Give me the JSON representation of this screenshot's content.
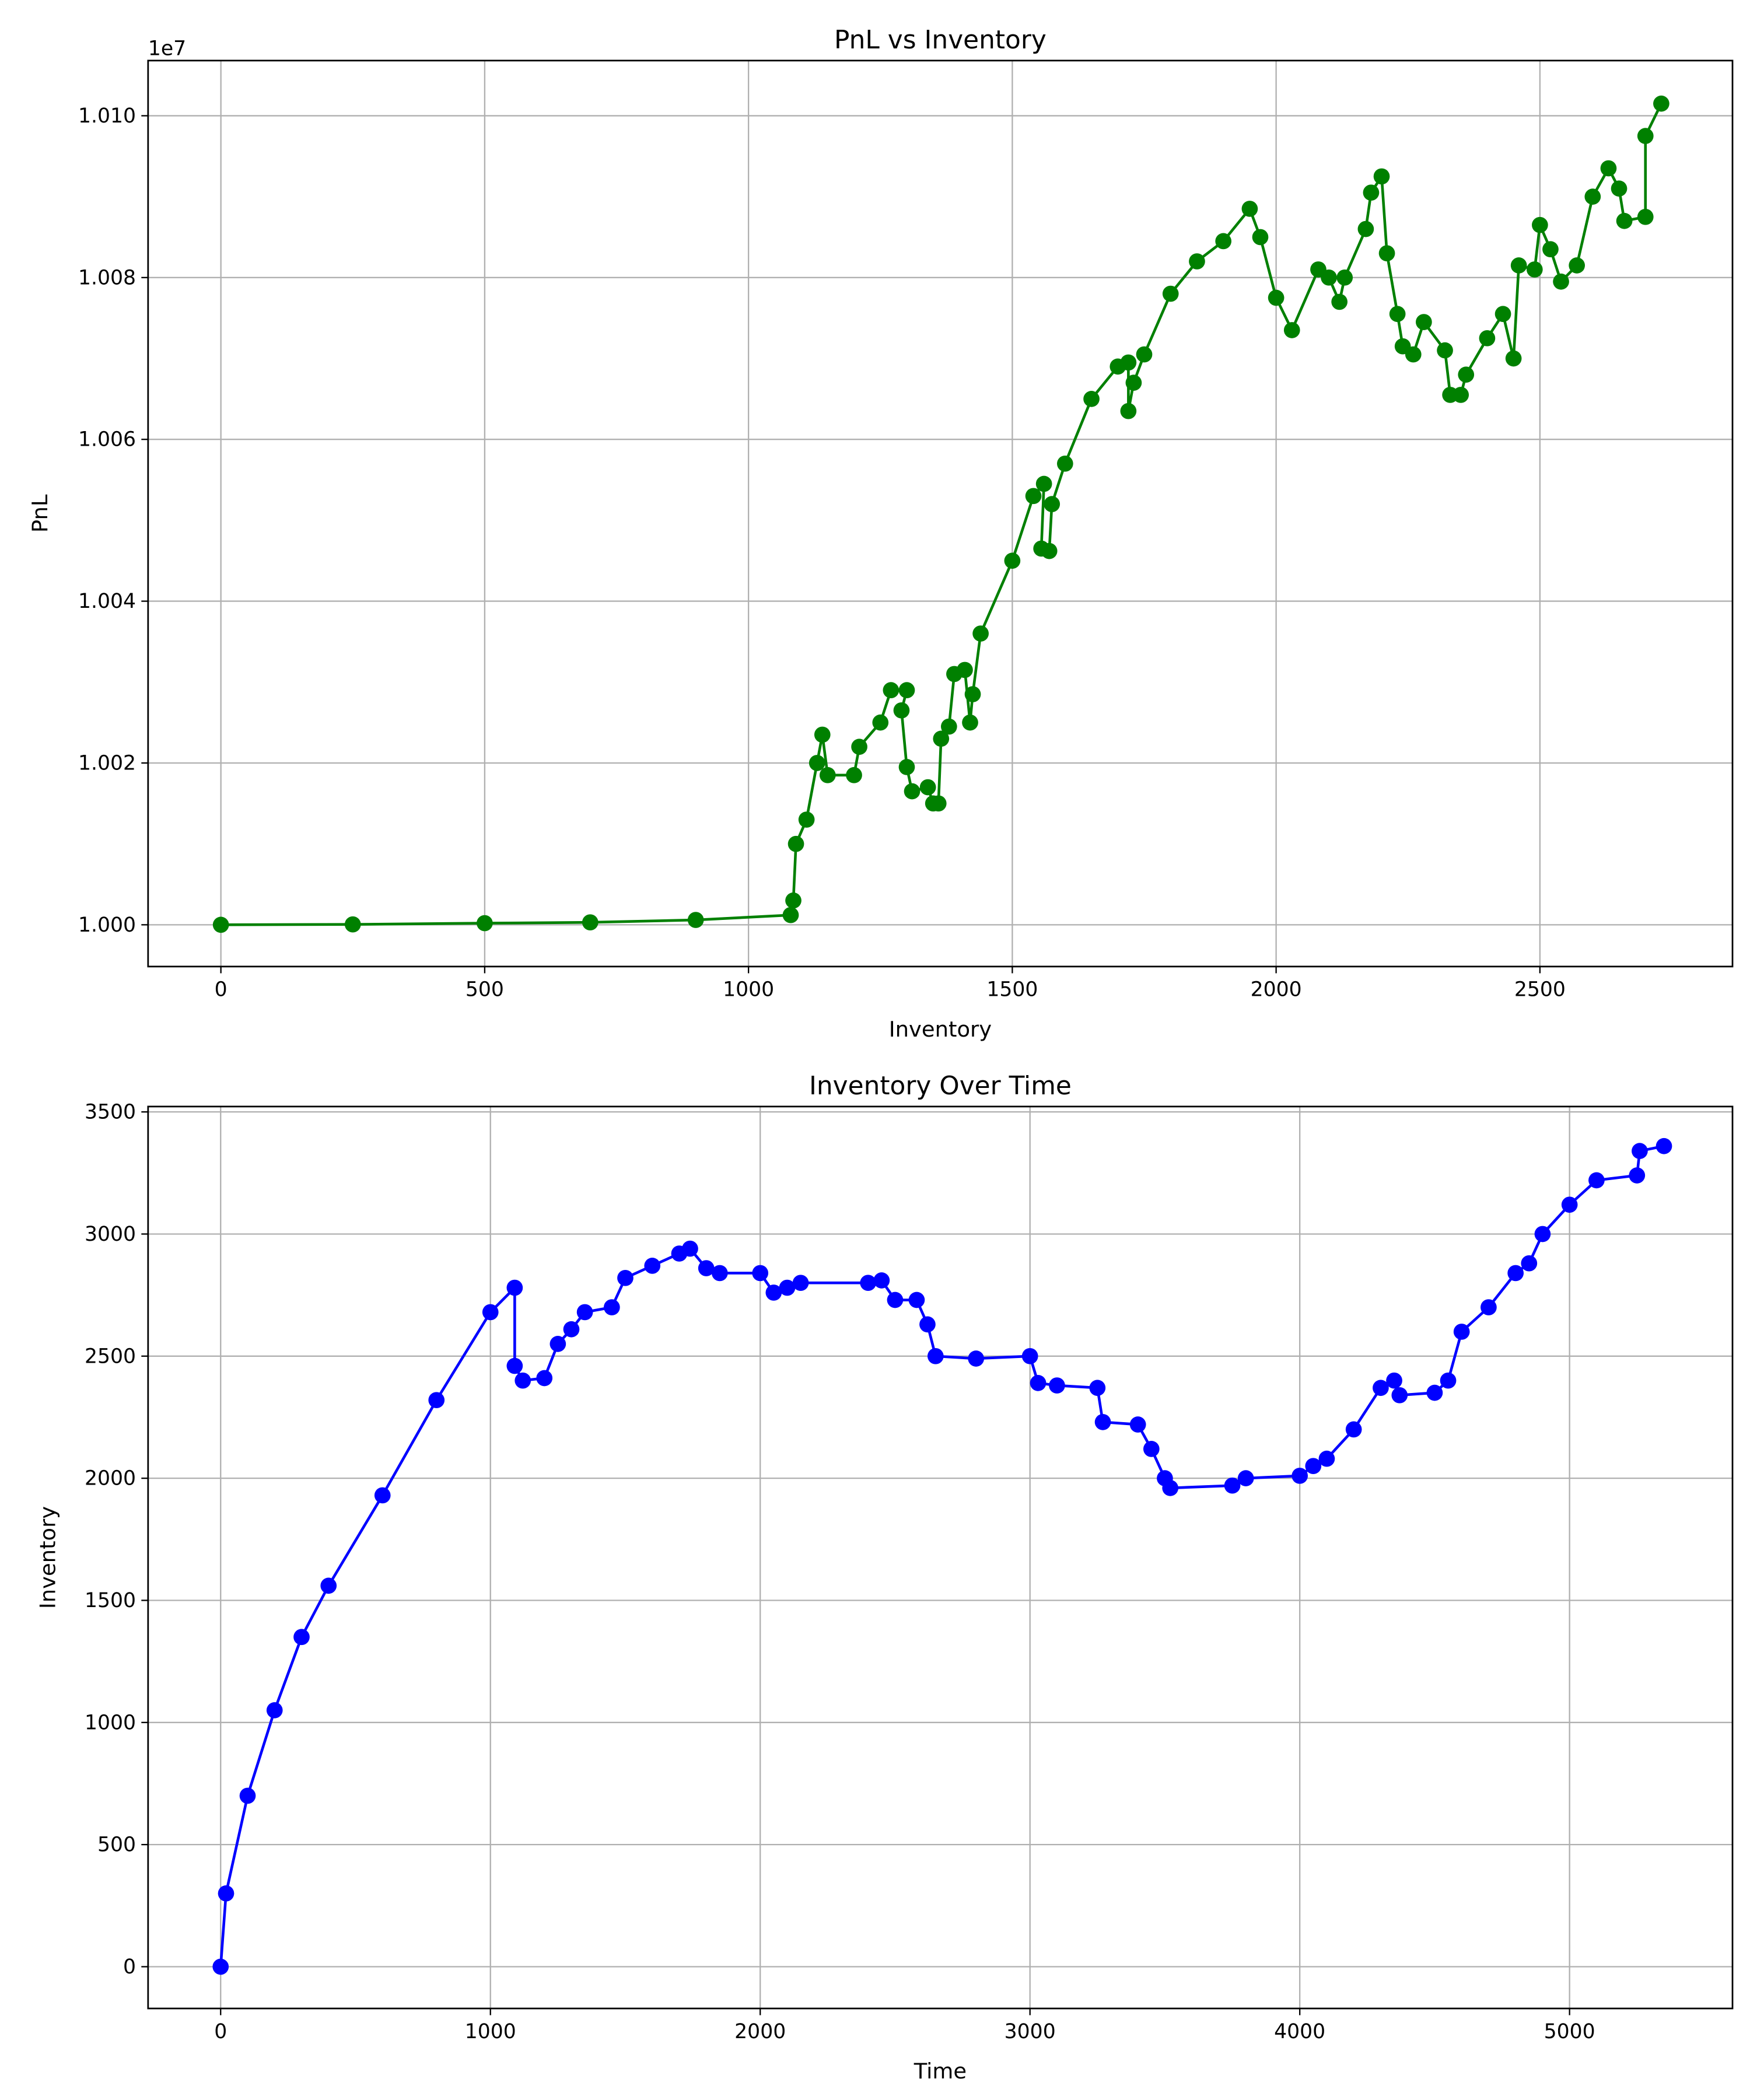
{
  "chart_data": [
    {
      "type": "line",
      "title": "PnL vs Inventory",
      "xlabel": "Inventory",
      "ylabel": "PnL",
      "offset_label": "1e7",
      "color": "#008000",
      "grid": true,
      "markers": true,
      "xlim": [
        -138,
        2865
      ],
      "ylim": [
        9994840,
        10106820
      ],
      "xticks": [
        0,
        500,
        1000,
        1500,
        2000,
        2500
      ],
      "yticks": [
        {
          "value": 10000000,
          "label": "1.000"
        },
        {
          "value": 10020000,
          "label": "1.002"
        },
        {
          "value": 10040000,
          "label": "1.004"
        },
        {
          "value": 10060000,
          "label": "1.006"
        },
        {
          "value": 10080000,
          "label": "1.008"
        },
        {
          "value": 10100000,
          "label": "1.010"
        }
      ],
      "x": [
        0,
        250,
        500,
        700,
        900,
        1080,
        1085,
        1090,
        1110,
        1130,
        1140,
        1150,
        1200,
        1210,
        1250,
        1270,
        1300,
        1290,
        1300,
        1310,
        1340,
        1350,
        1360,
        1365,
        1380,
        1390,
        1410,
        1420,
        1425,
        1440,
        1500,
        1540,
        1560,
        1555,
        1570,
        1575,
        1600,
        1650,
        1700,
        1720,
        1720,
        1730,
        1750,
        1800,
        1850,
        1900,
        1950,
        1970,
        2000,
        2030,
        2080,
        2100,
        2120,
        2130,
        2170,
        2180,
        2200,
        2210,
        2230,
        2240,
        2260,
        2280,
        2320,
        2330,
        2350,
        2360,
        2400,
        2430,
        2450,
        2460,
        2490,
        2500,
        2520,
        2540,
        2570,
        2600,
        2630,
        2650,
        2660,
        2700,
        2700,
        2730
      ],
      "y": [
        10000000,
        10000050,
        10000200,
        10000300,
        10000600,
        10001200,
        10003000,
        10010000,
        10013000,
        10020000,
        10023500,
        10018500,
        10018500,
        10022000,
        10025000,
        10029000,
        10029000,
        10026500,
        10019500,
        10016500,
        10017000,
        10015000,
        10015000,
        10023000,
        10024500,
        10031000,
        10031500,
        10025000,
        10028500,
        10036000,
        10045000,
        10053000,
        10054500,
        10046500,
        10046200,
        10052000,
        10057000,
        10065000,
        10069000,
        10069500,
        10063500,
        10067000,
        10070500,
        10078000,
        10082000,
        10084500,
        10088500,
        10085000,
        10077500,
        10073500,
        10081000,
        10080000,
        10077000,
        10080000,
        10086000,
        10090500,
        10092500,
        10083000,
        10075500,
        10071500,
        10070500,
        10074500,
        10071000,
        10065500,
        10065500,
        10068000,
        10072500,
        10075500,
        10070000,
        10081500,
        10081000,
        10086500,
        10083500,
        10079500,
        10081500,
        10090000,
        10093500,
        10091000,
        10087000,
        10087500,
        10097500,
        10101500
      ]
    },
    {
      "type": "line",
      "title": "Inventory Over Time",
      "xlabel": "Time",
      "ylabel": "Inventory",
      "color": "#0000ff",
      "grid": true,
      "markers": true,
      "xlim": [
        -269,
        5604
      ],
      "ylim": [
        -171,
        3522
      ],
      "xticks": [
        0,
        1000,
        2000,
        3000,
        4000,
        5000
      ],
      "yticks": [
        0,
        500,
        1000,
        1500,
        2000,
        2500,
        3000,
        3500
      ],
      "x": [
        0,
        20,
        100,
        200,
        300,
        400,
        600,
        800,
        1000,
        1090,
        1090,
        1120,
        1200,
        1250,
        1300,
        1350,
        1450,
        1500,
        1600,
        1700,
        1740,
        1800,
        1850,
        2000,
        2050,
        2100,
        2150,
        2400,
        2450,
        2500,
        2580,
        2620,
        2650,
        2800,
        3000,
        3030,
        3100,
        3250,
        3270,
        3400,
        3450,
        3500,
        3520,
        3750,
        3800,
        4000,
        4050,
        4100,
        4200,
        4300,
        4350,
        4370,
        4500,
        4550,
        4600,
        4700,
        4800,
        4850,
        4900,
        5000,
        5100,
        5250,
        5260,
        5350
      ],
      "y": [
        0,
        300,
        700,
        1050,
        1350,
        1560,
        1930,
        2320,
        2680,
        2780,
        2460,
        2400,
        2410,
        2550,
        2610,
        2680,
        2700,
        2820,
        2870,
        2920,
        2940,
        2860,
        2840,
        2840,
        2760,
        2780,
        2800,
        2800,
        2810,
        2730,
        2730,
        2630,
        2500,
        2490,
        2500,
        2390,
        2380,
        2370,
        2230,
        2220,
        2120,
        2000,
        1960,
        1970,
        2000,
        2010,
        2050,
        2080,
        2200,
        2370,
        2400,
        2340,
        2350,
        2400,
        2600,
        2700,
        2840,
        2880,
        3000,
        3120,
        3220,
        3240,
        3340,
        3360
      ]
    }
  ]
}
